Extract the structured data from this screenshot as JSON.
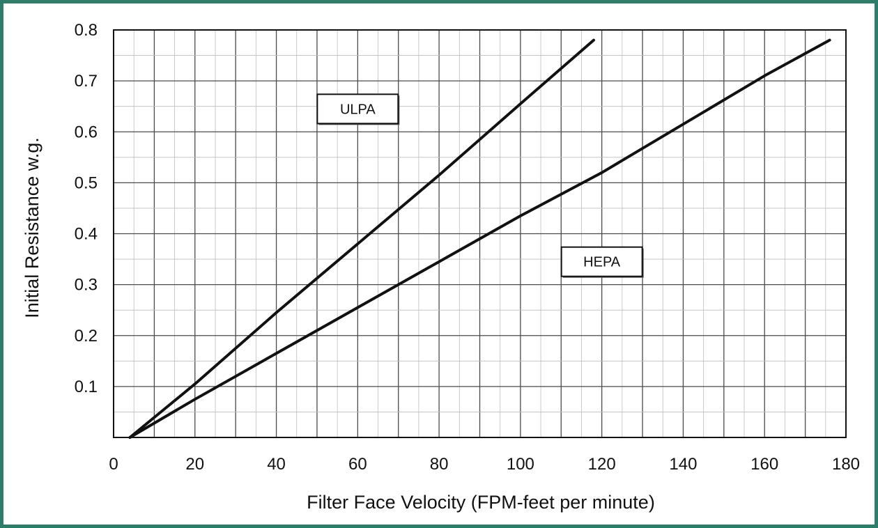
{
  "chart_data": {
    "type": "line",
    "title": "",
    "xlabel": "Filter Face Velocity (FPM-feet per minute)",
    "ylabel": "Initial Resistance w.g.",
    "xlim": [
      0,
      180
    ],
    "ylim": [
      0,
      0.8
    ],
    "x_ticks": [
      "0",
      "20",
      "40",
      "60",
      "80",
      "100",
      "120",
      "140",
      "160",
      "180"
    ],
    "y_ticks": [
      "0.1",
      "0.2",
      "0.3",
      "0.4",
      "0.5",
      "0.6",
      "0.7",
      "0.8"
    ],
    "grid": true,
    "frame_color": "#2e7d6b",
    "series": [
      {
        "name": "ULPA",
        "x": [
          4,
          20,
          40,
          60,
          80,
          100,
          118
        ],
        "y": [
          0,
          0.105,
          0.245,
          0.38,
          0.515,
          0.655,
          0.78
        ]
      },
      {
        "name": "HEPA",
        "x": [
          4,
          20,
          40,
          60,
          80,
          100,
          120,
          140,
          160,
          176
        ],
        "y": [
          0,
          0.075,
          0.165,
          0.255,
          0.345,
          0.435,
          0.52,
          0.615,
          0.71,
          0.78
        ]
      }
    ],
    "annotations": [
      {
        "text": "ULPA",
        "x": 60,
        "y": 0.645
      },
      {
        "text": "HEPA",
        "x": 120,
        "y": 0.345
      }
    ]
  }
}
